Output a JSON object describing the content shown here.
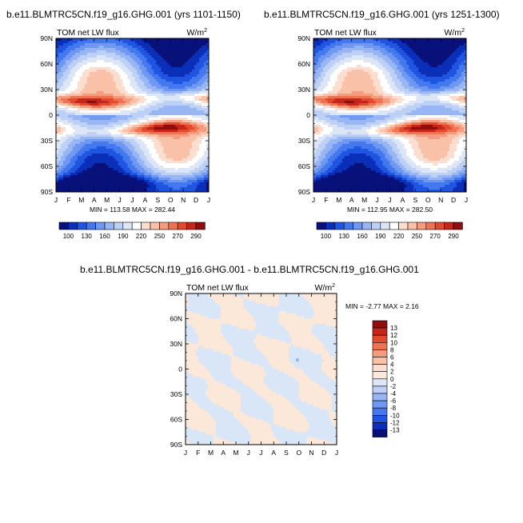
{
  "panels": [
    {
      "title": "b.e11.BLMTRC5CN.f19_g16.GHG.001 (yrs 1101-1150)",
      "subtitle_left": "TOM net LW flux",
      "units_base": "W/m",
      "units_exp": "2",
      "stats": "MIN = 113.58 MAX = 282.44"
    },
    {
      "title": "b.e11.BLMTRC5CN.f19_g16.GHG.001 (yrs 1251-1300)",
      "subtitle_left": "TOM net LW flux",
      "units_base": "W/m",
      "units_exp": "2",
      "stats": "MIN = 112.95 MAX = 282.50"
    },
    {
      "title": "b.e11.BLMTRC5CN.f19_g16.GHG.001 - b.e11.BLMTRC5CN.f19_g16.GHG.001",
      "subtitle_left": "TOM net LW flux",
      "units_base": "W/m",
      "units_exp": "2",
      "stats": "MIN =  -2.77 MAX =   2.16"
    }
  ],
  "chart_data": [
    {
      "type": "heatmap",
      "title": "b.e11.BLMTRC5CN.f19_g16.GHG.001 (yrs 1101-1150)",
      "variable": "TOM net LW flux",
      "units": "W/m2",
      "x_ticks": [
        "J",
        "F",
        "M",
        "A",
        "M",
        "J",
        "J",
        "A",
        "S",
        "O",
        "N",
        "D",
        "J"
      ],
      "y_ticks": [
        "90N",
        "60N",
        "30N",
        "0",
        "30S",
        "60S",
        "90S"
      ],
      "min": 113.58,
      "max": 282.44,
      "colorbar_labels": [
        "100",
        "130",
        "160",
        "190",
        "220",
        "250",
        "270",
        "290"
      ]
    },
    {
      "type": "heatmap",
      "title": "b.e11.BLMTRC5CN.f19_g16.GHG.001 (yrs 1251-1300)",
      "variable": "TOM net LW flux",
      "units": "W/m2",
      "x_ticks": [
        "J",
        "F",
        "M",
        "A",
        "M",
        "J",
        "J",
        "A",
        "S",
        "O",
        "N",
        "D",
        "J"
      ],
      "y_ticks": [
        "90N",
        "60N",
        "30N",
        "0",
        "30S",
        "60S",
        "90S"
      ],
      "min": 112.95,
      "max": 282.5,
      "colorbar_labels": [
        "100",
        "130",
        "160",
        "190",
        "220",
        "250",
        "270",
        "290"
      ]
    },
    {
      "type": "heatmap",
      "title": "b.e11.BLMTRC5CN.f19_g16.GHG.001 - b.e11.BLMTRC5CN.f19_g16.GHG.001",
      "variable": "TOM net LW flux",
      "units": "W/m2",
      "x_ticks": [
        "J",
        "F",
        "M",
        "A",
        "M",
        "J",
        "J",
        "A",
        "S",
        "O",
        "N",
        "D",
        "J"
      ],
      "y_ticks": [
        "90N",
        "60N",
        "30N",
        "0",
        "30S",
        "60S",
        "90S"
      ],
      "min": -2.77,
      "max": 2.16,
      "colorbar_labels": [
        "13",
        "12",
        "10",
        "8",
        "6",
        "4",
        "2",
        "0",
        "-2",
        "-4",
        "-6",
        "-8",
        "-10",
        "-12",
        "-13"
      ]
    }
  ],
  "colors": {
    "abs_scale": [
      "#08107a",
      "#0a2fb8",
      "#1f55e0",
      "#4478ef",
      "#6f98f2",
      "#98b6f4",
      "#bdd0f6",
      "#dde6f7",
      "#ffffff",
      "#fbded0",
      "#f8c1a8",
      "#f59c7e",
      "#ef7353",
      "#e24a2e",
      "#c4261a",
      "#8f0d0d"
    ],
    "diff_scale": [
      "#8f0d0d",
      "#c4261a",
      "#e24a2e",
      "#ef7353",
      "#f59c7e",
      "#f8c1a8",
      "#fbded0",
      "#fde8dc",
      "#dde6f7",
      "#bdd0f6",
      "#98b6f4",
      "#6f98f2",
      "#4478ef",
      "#1f55e0",
      "#0a2fb8",
      "#08107a"
    ],
    "diff_pos": "#fce8d8",
    "diff_neg": "#d9e6f8"
  }
}
